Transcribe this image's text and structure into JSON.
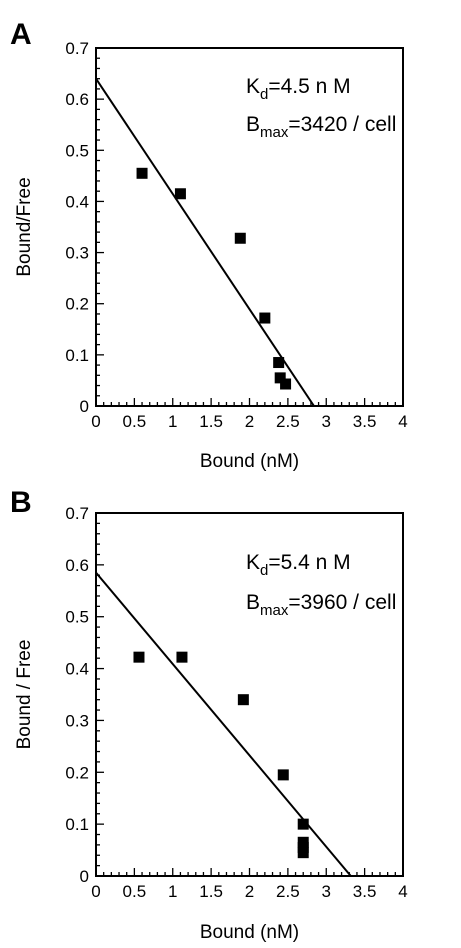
{
  "chart_data": [
    {
      "type": "scatter",
      "panel_label": "A",
      "xlabel": "Bound (nM)",
      "ylabel": "Bound/Free",
      "xlim": [
        0,
        4
      ],
      "ylim": [
        0,
        0.7
      ],
      "x_ticks": [
        "0",
        "0.5",
        "1",
        "1.5",
        "2",
        "2.5",
        "3",
        "3.5",
        "4"
      ],
      "y_ticks": [
        "0",
        "0.1",
        "0.2",
        "0.3",
        "0.4",
        "0.5",
        "0.6",
        "0.7"
      ],
      "annotations": {
        "kd": {
          "main": "K",
          "sub": "d",
          "rest": "=4.5 n M"
        },
        "bmax": {
          "main": "B",
          "sub": "max",
          "rest": "=3420 / cell"
        }
      },
      "points": [
        {
          "x": 0.6,
          "y": 0.455
        },
        {
          "x": 1.1,
          "y": 0.415
        },
        {
          "x": 1.88,
          "y": 0.328
        },
        {
          "x": 2.2,
          "y": 0.172
        },
        {
          "x": 2.38,
          "y": 0.085
        },
        {
          "x": 2.4,
          "y": 0.055
        },
        {
          "x": 2.47,
          "y": 0.043
        }
      ],
      "fit_line": {
        "x": [
          0,
          2.84
        ],
        "y": [
          0.64,
          0
        ]
      },
      "grid": false
    },
    {
      "type": "scatter",
      "panel_label": "B",
      "xlabel": "Bound (nM)",
      "ylabel": "Bound / Free",
      "xlim": [
        0,
        4
      ],
      "ylim": [
        0,
        0.7
      ],
      "x_ticks": [
        "0",
        "0.5",
        "1",
        "1.5",
        "2",
        "2.5",
        "3",
        "3.5",
        "4"
      ],
      "y_ticks": [
        "0",
        "0.1",
        "0.2",
        "0.3",
        "0.4",
        "0.5",
        "0.6",
        "0.7"
      ],
      "annotations": {
        "kd": {
          "main": "K",
          "sub": "d",
          "rest": "=5.4 n M"
        },
        "bmax": {
          "main": "B",
          "sub": "max",
          "rest": "=3960 / cell"
        }
      },
      "points": [
        {
          "x": 0.56,
          "y": 0.422
        },
        {
          "x": 1.12,
          "y": 0.422
        },
        {
          "x": 1.92,
          "y": 0.34
        },
        {
          "x": 2.44,
          "y": 0.195
        },
        {
          "x": 2.7,
          "y": 0.1
        },
        {
          "x": 2.7,
          "y": 0.065
        },
        {
          "x": 2.7,
          "y": 0.055
        },
        {
          "x": 2.7,
          "y": 0.045
        }
      ],
      "fit_line": {
        "x": [
          0,
          3.32
        ],
        "y": [
          0.585,
          0
        ]
      },
      "grid": false
    }
  ]
}
